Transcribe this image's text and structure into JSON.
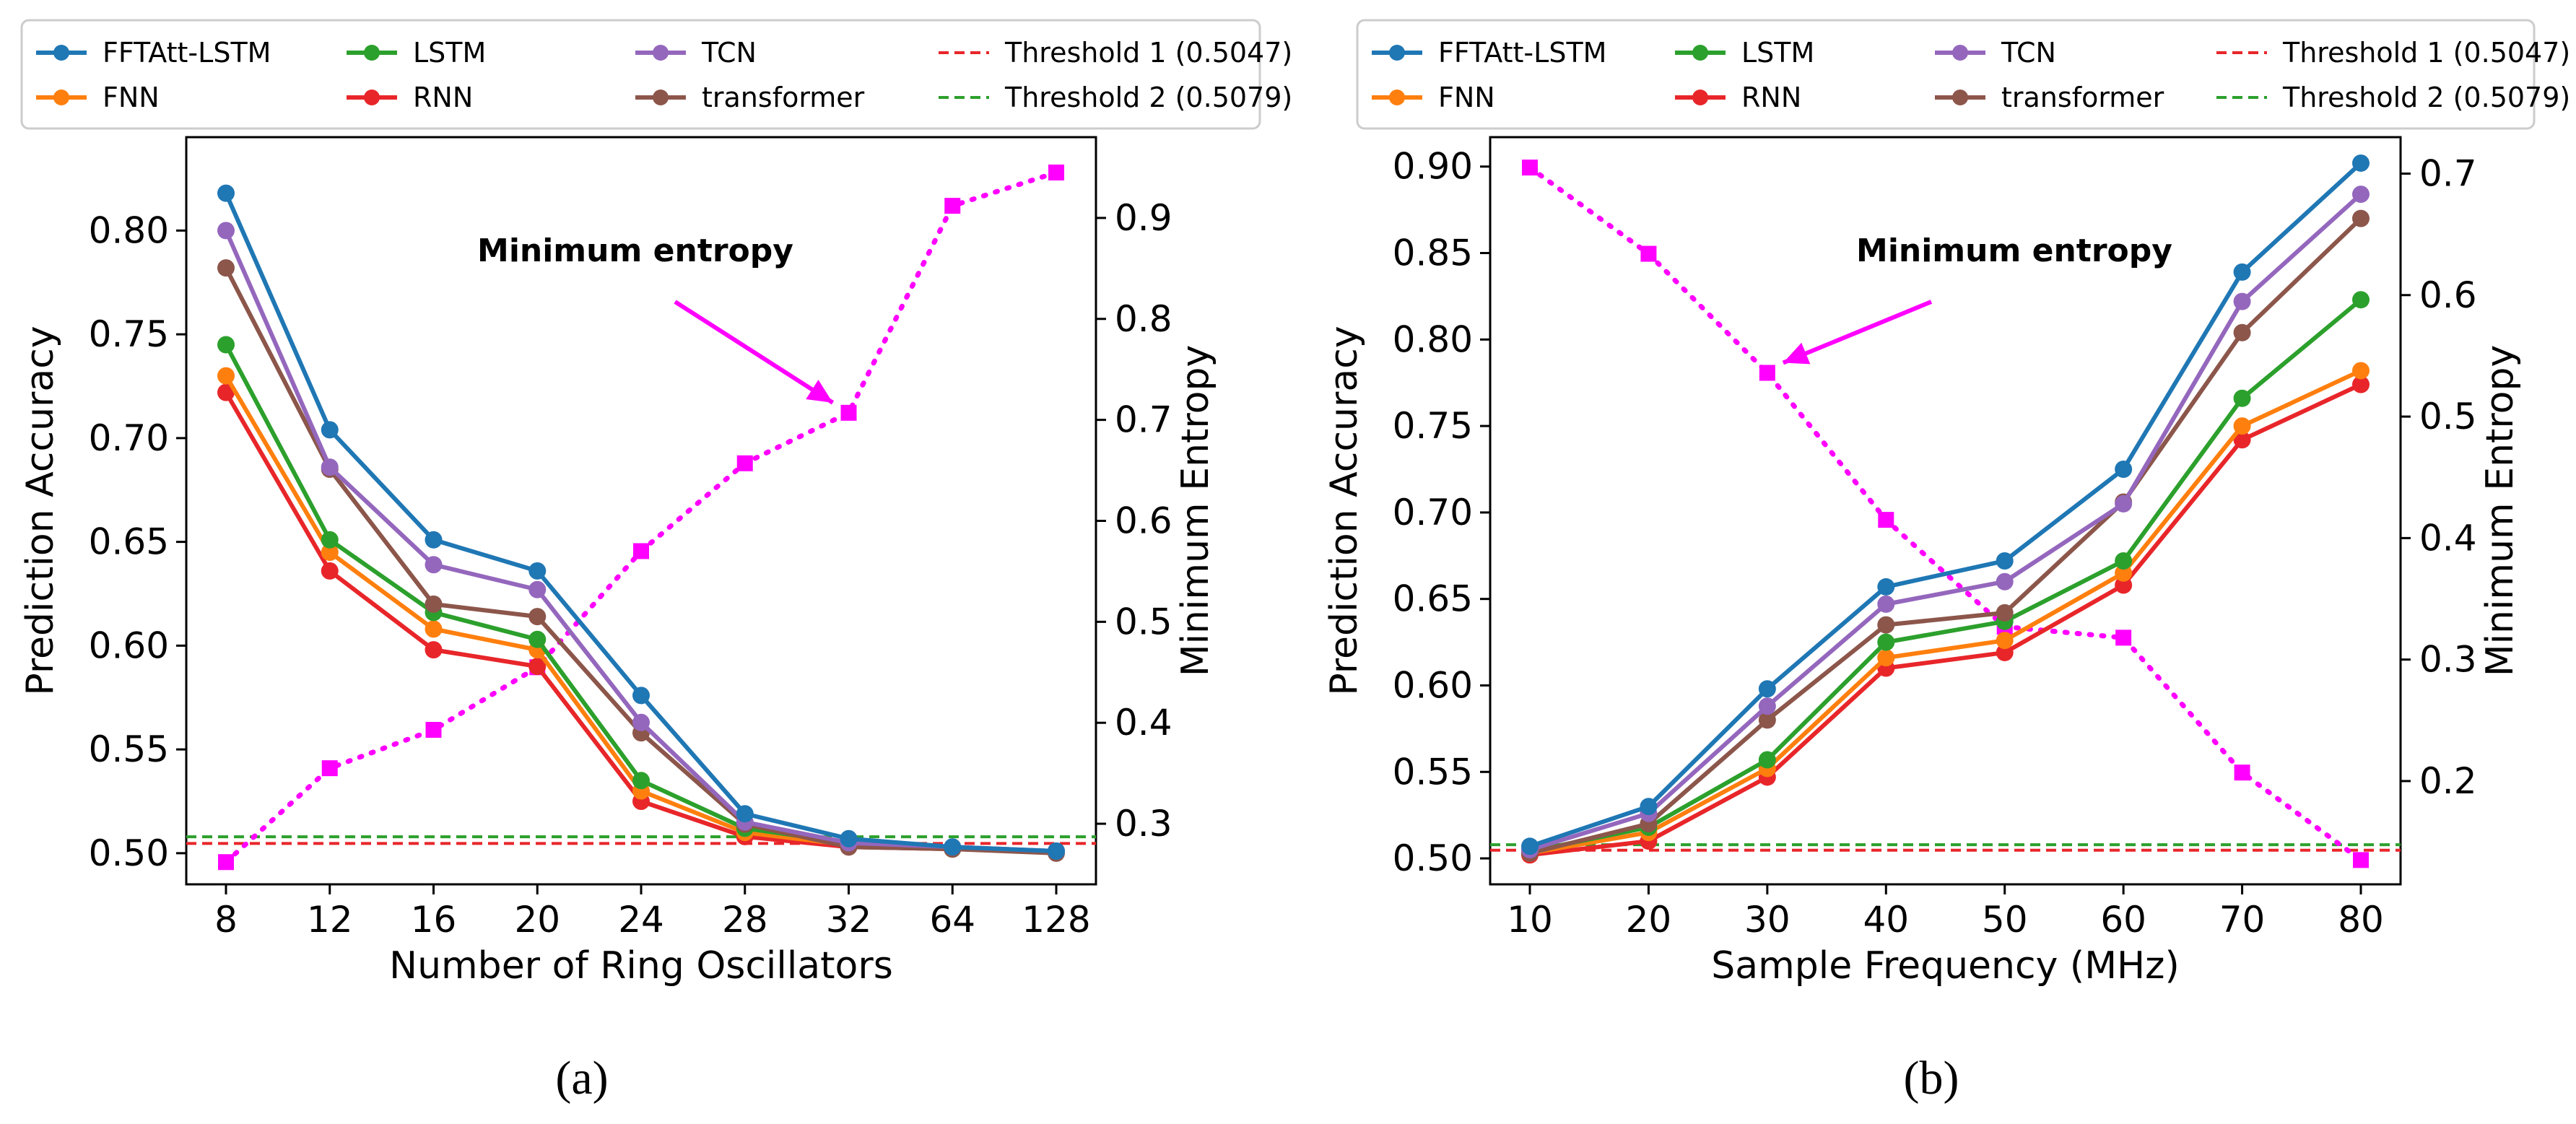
{
  "chart_data": [
    {
      "type": "line",
      "panel_label": "a",
      "xlabel": "Number of Ring Oscillators",
      "ylabel": "Prediction Accuracy",
      "ylabel_right": "Minimum Entropy",
      "categories": [
        "8",
        "12",
        "16",
        "20",
        "24",
        "28",
        "32",
        "64",
        "128"
      ],
      "ylim": [
        0.485,
        0.845
      ],
      "yticks": [
        "0.50",
        "0.55",
        "0.60",
        "0.65",
        "0.70",
        "0.75",
        "0.80"
      ],
      "ylim_right": [
        0.24,
        0.98
      ],
      "yticks_right": [
        "0.3",
        "0.4",
        "0.5",
        "0.6",
        "0.7",
        "0.8",
        "0.9"
      ],
      "series": [
        {
          "name": "FFTAtt-LSTM",
          "color": "#1f77b4",
          "values": [
            0.818,
            0.704,
            0.651,
            0.636,
            0.576,
            0.519,
            0.507,
            0.503,
            0.501
          ]
        },
        {
          "name": "FNN",
          "color": "#ff7f0e",
          "values": [
            0.73,
            0.645,
            0.608,
            0.598,
            0.53,
            0.51,
            0.504,
            0.502,
            0.501
          ]
        },
        {
          "name": "LSTM",
          "color": "#2ca02c",
          "values": [
            0.745,
            0.651,
            0.616,
            0.603,
            0.535,
            0.512,
            0.505,
            0.502,
            0.501
          ]
        },
        {
          "name": "RNN",
          "color": "#e8262a",
          "values": [
            0.722,
            0.636,
            0.598,
            0.59,
            0.525,
            0.508,
            0.503,
            0.502,
            0.501
          ]
        },
        {
          "name": "TCN",
          "color": "#9467bd",
          "values": [
            0.8,
            0.686,
            0.639,
            0.627,
            0.563,
            0.515,
            0.505,
            0.503,
            0.501
          ]
        },
        {
          "name": "transformer",
          "color": "#8c564b",
          "values": [
            0.782,
            0.685,
            0.62,
            0.614,
            0.558,
            0.514,
            0.503,
            0.502,
            0.5
          ]
        }
      ],
      "thresholds": [
        {
          "name": "Threshold 1 (0.5047)",
          "value": 0.5047,
          "color": "#e8262a"
        },
        {
          "name": "Threshold 2 (0.5079)",
          "value": 0.5079,
          "color": "#2ca02c"
        }
      ],
      "entropy": {
        "name": "Minimum entropy",
        "color": "#ff00ff",
        "values": [
          0.262,
          0.355,
          0.393,
          0.455,
          0.57,
          0.657,
          0.707,
          0.912,
          0.945
        ]
      },
      "annotation": {
        "text": "Minimum entropy",
        "points_to_index": 6
      }
    },
    {
      "type": "line",
      "panel_label": "b",
      "xlabel": "Sample Frequency (MHz)",
      "ylabel": "Prediction Accuracy",
      "ylabel_right": "Minimum Entropy",
      "categories": [
        "10",
        "20",
        "30",
        "40",
        "50",
        "60",
        "70",
        "80"
      ],
      "ylim": [
        0.485,
        0.917
      ],
      "yticks": [
        "0.50",
        "0.55",
        "0.60",
        "0.65",
        "0.70",
        "0.75",
        "0.80",
        "0.85",
        "0.90"
      ],
      "ylim_right": [
        0.115,
        0.73
      ],
      "yticks_right": [
        "0.2",
        "0.3",
        "0.4",
        "0.5",
        "0.6",
        "0.7"
      ],
      "series": [
        {
          "name": "FFTAtt-LSTM",
          "color": "#1f77b4",
          "values": [
            0.507,
            0.53,
            0.598,
            0.657,
            0.672,
            0.725,
            0.839,
            0.902
          ]
        },
        {
          "name": "FNN",
          "color": "#ff7f0e",
          "values": [
            0.503,
            0.515,
            0.552,
            0.616,
            0.626,
            0.665,
            0.75,
            0.782
          ]
        },
        {
          "name": "LSTM",
          "color": "#2ca02c",
          "values": [
            0.504,
            0.518,
            0.557,
            0.625,
            0.637,
            0.672,
            0.766,
            0.823
          ]
        },
        {
          "name": "RNN",
          "color": "#e8262a",
          "values": [
            0.502,
            0.51,
            0.547,
            0.61,
            0.619,
            0.658,
            0.742,
            0.774
          ]
        },
        {
          "name": "TCN",
          "color": "#9467bd",
          "values": [
            0.505,
            0.526,
            0.588,
            0.647,
            0.66,
            0.705,
            0.822,
            0.884
          ]
        },
        {
          "name": "transformer",
          "color": "#8c564b",
          "values": [
            0.503,
            0.52,
            0.58,
            0.635,
            0.642,
            0.706,
            0.804,
            0.87
          ]
        }
      ],
      "thresholds": [
        {
          "name": "Threshold 1 (0.5047)",
          "value": 0.5047,
          "color": "#e8262a"
        },
        {
          "name": "Threshold 2 (0.5079)",
          "value": 0.5079,
          "color": "#2ca02c"
        }
      ],
      "entropy": {
        "name": "Minimum entropy",
        "color": "#ff00ff",
        "values": [
          0.705,
          0.634,
          0.536,
          0.415,
          0.327,
          0.318,
          0.207,
          0.135
        ]
      },
      "annotation": {
        "text": "Minimum entropy",
        "points_to_index": 2
      }
    }
  ],
  "captions": [
    "(a)",
    "(b)"
  ]
}
